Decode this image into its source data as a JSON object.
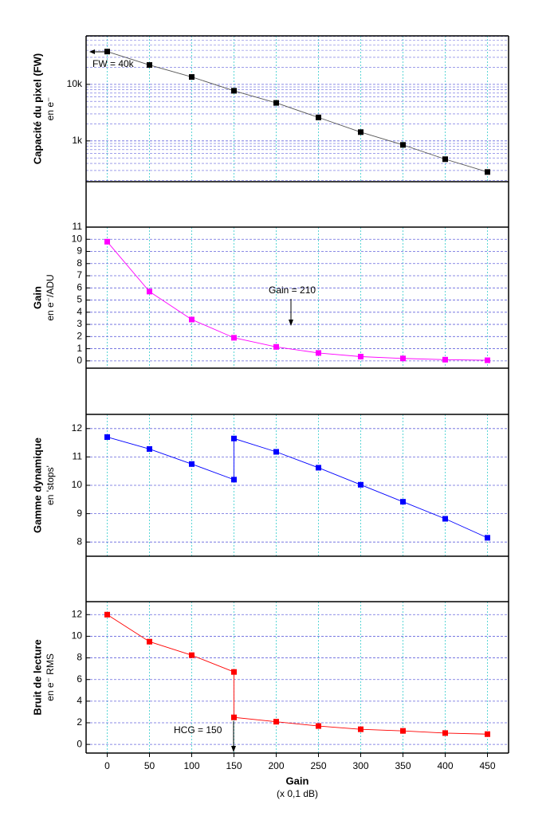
{
  "chart_data": [
    {
      "type": "line",
      "y_label": "Capacité du pixel (FW)",
      "y_sublabel": "en e⁻",
      "log_y": true,
      "grid": true,
      "x": [
        0,
        50,
        100,
        150,
        200,
        250,
        300,
        350,
        400,
        450
      ],
      "values": [
        38000,
        22000,
        13500,
        7700,
        4700,
        2600,
        1430,
        850,
        475,
        282
      ],
      "color": "#000000",
      "line_color": "#555555",
      "xlim": [
        -25,
        475
      ],
      "ylim": [
        190,
        72000
      ],
      "yticks": [
        {
          "value": 1000,
          "label": "1k"
        },
        {
          "value": 10000,
          "label": "10k"
        }
      ],
      "yminor": [
        200,
        300,
        400,
        500,
        600,
        700,
        800,
        900,
        2000,
        3000,
        4000,
        5000,
        6000,
        7000,
        8000,
        9000,
        20000,
        30000,
        40000,
        50000,
        60000,
        70000
      ],
      "annotation": "FW = 40k"
    },
    {
      "type": "line",
      "y_label": "Gain",
      "y_sublabel": "en e⁻/ADU",
      "grid": true,
      "x": [
        0,
        50,
        100,
        150,
        200,
        250,
        300,
        350,
        400,
        450
      ],
      "values": [
        9.8,
        5.7,
        3.4,
        1.9,
        1.15,
        0.65,
        0.35,
        0.2,
        0.1,
        0.05
      ],
      "color": "#ff00ff",
      "line_color": "#ff00ff",
      "xlim": [
        -25,
        475
      ],
      "ylim": [
        -0.6,
        11
      ],
      "yticks": [
        0,
        1,
        2,
        3,
        4,
        5,
        6,
        7,
        8,
        9,
        10,
        11
      ],
      "annotation": "Gain = 210"
    },
    {
      "type": "line",
      "y_label": "Gamme dynamique",
      "y_sublabel": "en 'stops'",
      "grid": true,
      "x": [
        0,
        50,
        100,
        150,
        150,
        200,
        250,
        300,
        350,
        400,
        450
      ],
      "values": [
        11.7,
        11.28,
        10.75,
        10.2,
        11.65,
        11.18,
        10.62,
        10.02,
        9.42,
        8.82,
        8.15
      ],
      "color": "#0000ff",
      "line_color": "#0000ff",
      "xlim": [
        -25,
        475
      ],
      "ylim": [
        7.5,
        12.5
      ],
      "yticks": [
        8,
        9,
        10,
        11,
        12
      ]
    },
    {
      "type": "line",
      "y_label": "Bruit de lecture",
      "y_sublabel": "en e⁻ RMS",
      "grid": true,
      "x": [
        0,
        50,
        100,
        150,
        150,
        200,
        250,
        300,
        350,
        400,
        450
      ],
      "values": [
        12,
        9.5,
        8.25,
        6.7,
        2.5,
        2.1,
        1.7,
        1.4,
        1.25,
        1.05,
        0.95
      ],
      "color": "#ff0000",
      "line_color": "#ff0000",
      "xlim": [
        -25,
        475
      ],
      "ylim": [
        -0.8,
        13.2
      ],
      "yticks": [
        0,
        2,
        4,
        6,
        8,
        10,
        12
      ],
      "xticks": [
        0,
        50,
        100,
        150,
        200,
        250,
        300,
        350,
        400,
        450
      ],
      "x_label": "Gain",
      "x_sublabel": "(x 0,1 dB)",
      "annotation": "HCG = 150"
    }
  ]
}
